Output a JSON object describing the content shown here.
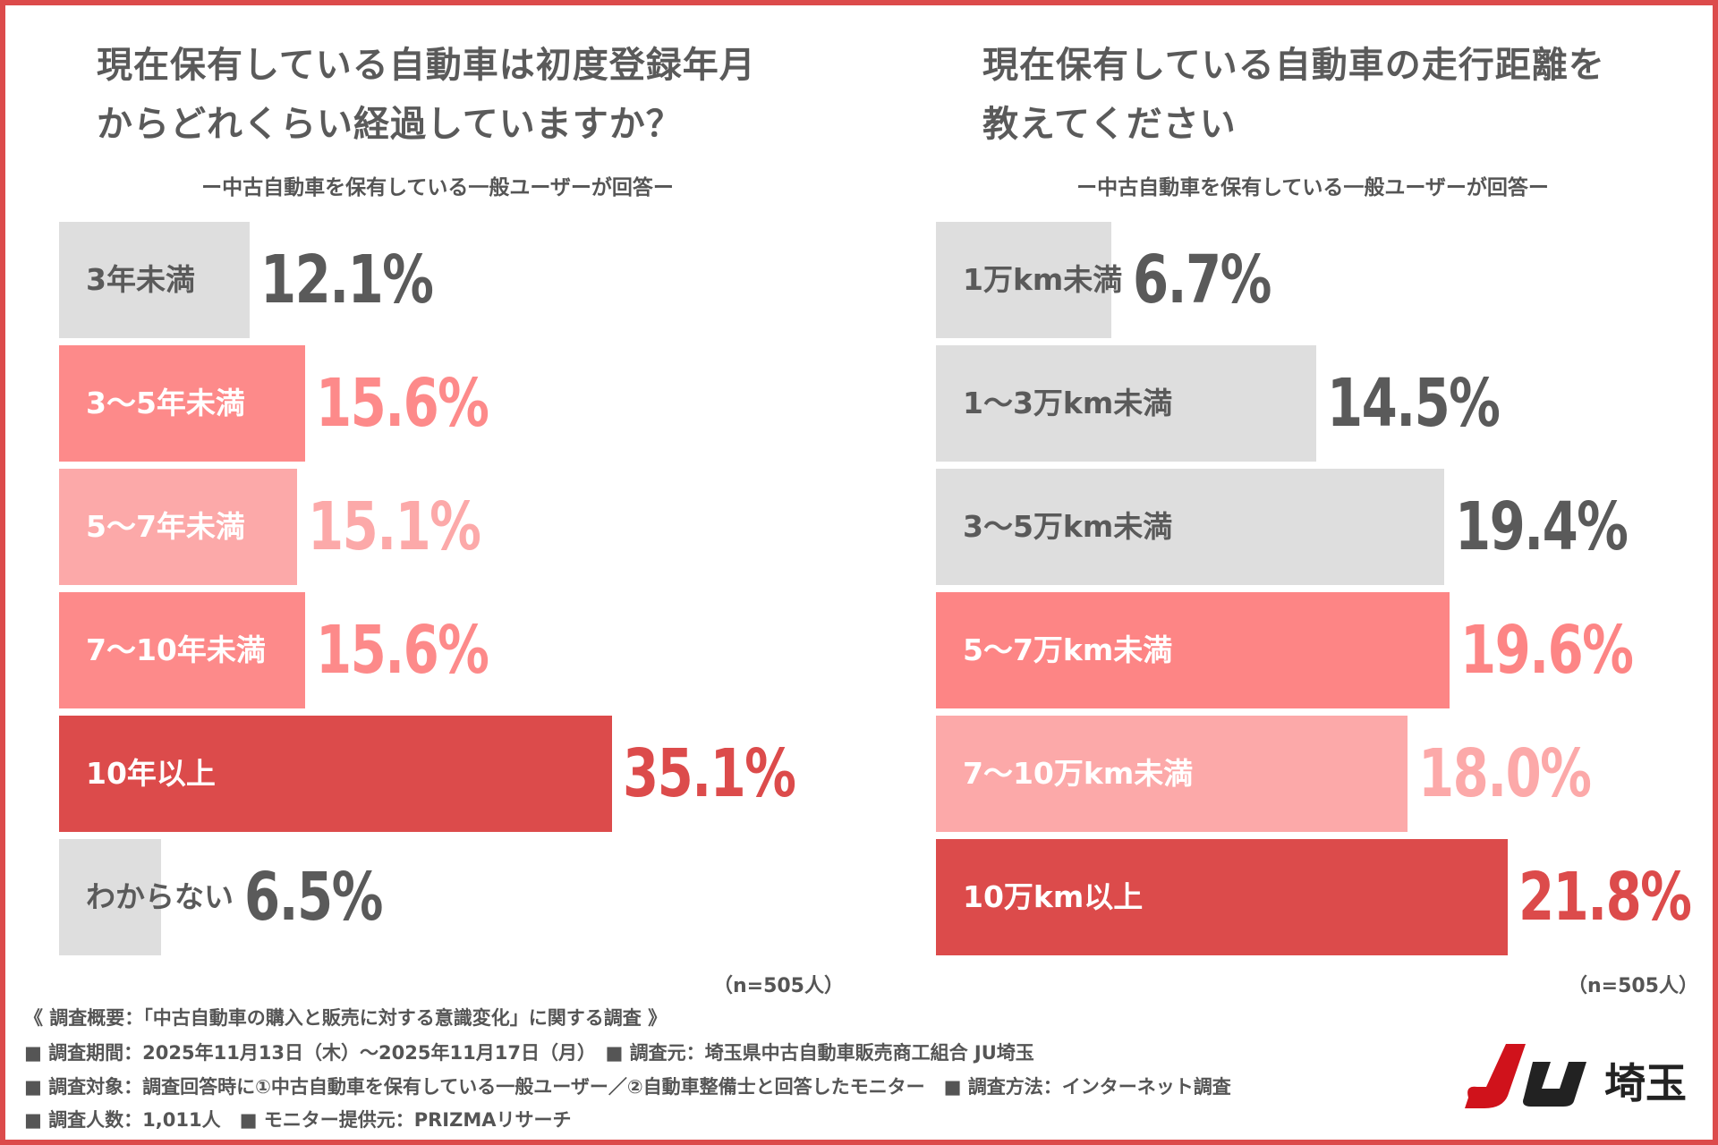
{
  "chart_data": [
    {
      "type": "bar",
      "orientation": "horizontal",
      "title": [
        "現在保有している自動車は初度登録年月",
        "からどれくらい経過していますか？"
      ],
      "subtitle": "ー中古自動車を保有している一般ユーザーが回答ー",
      "categories": [
        "3年未満",
        "3〜5年未満",
        "5〜7年未満",
        "7〜10年未満",
        "10年以上",
        "わからない"
      ],
      "values": [
        12.1,
        15.6,
        15.1,
        15.6,
        35.1,
        6.5
      ],
      "labels": [
        "12.1%",
        "15.6%",
        "15.1%",
        "15.6%",
        "35.1%",
        "6.5%"
      ],
      "colors": [
        "#dedede",
        "#fd8a8a",
        "#fca9a9",
        "#fd8a8a",
        "#dc4b4b",
        "#dedede"
      ],
      "note": "（n=505人）"
    },
    {
      "type": "bar",
      "orientation": "horizontal",
      "title": [
        "現在保有している自動車の走行距離を",
        "教えてください"
      ],
      "subtitle": "ー中古自動車を保有している一般ユーザーが回答ー",
      "categories": [
        "1万km未満",
        "1〜3万km未満",
        "3〜5万km未満",
        "5〜7万km未満",
        "7〜10万km未満",
        "10万km以上"
      ],
      "values": [
        6.7,
        14.5,
        19.4,
        19.6,
        18.0,
        21.8
      ],
      "labels": [
        "6.7%",
        "14.5%",
        "19.4%",
        "19.6%",
        "18.0%",
        "21.8%"
      ],
      "colors": [
        "#dedede",
        "#dedede",
        "#dedede",
        "#fd8585",
        "#fca9a9",
        "#dc4b4b"
      ],
      "note": "（n=505人）"
    }
  ],
  "footer": [
    "《 調査概要：「中古自動車の購入と販売に対する意識変化」に関する調査 》",
    "■ 調査期間：2025年11月13日（木）〜2025年11月17日（月）　■ 調査元：埼玉県中古自動車販売商工組合 JU埼玉",
    "■ 調査対象：調査回答時に①中古自動車を保有している一般ユーザー／②自動車整備士と回答したモニター　■ 調査方法：インターネット調査",
    "■ 調査人数：1,011人　■ モニター提供元：PRIZMAリサーチ"
  ],
  "logo": {
    "text": "JU埼玉",
    "colors": {
      "J": "#d0121b",
      "U": "#222222"
    }
  }
}
